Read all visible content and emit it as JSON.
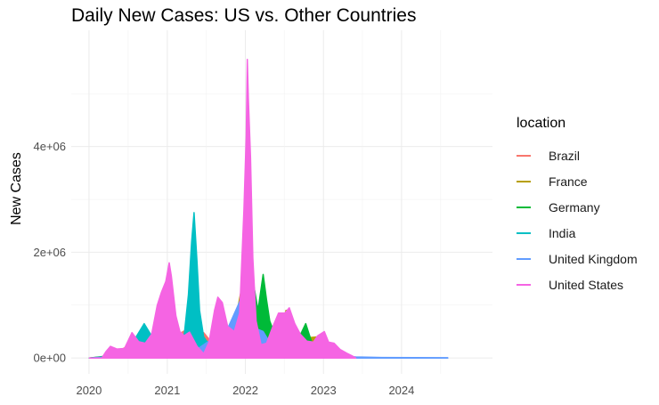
{
  "chart_data": {
    "type": "area",
    "title": "Daily New Cases: US vs. Other Countries",
    "xlabel": "",
    "ylabel": "New Cases",
    "xlim": [
      "2019-10-10",
      "2025-03-01"
    ],
    "ylim": [
      -300000,
      6200000
    ],
    "x_ticks": [
      "2020",
      "2021",
      "2022",
      "2023",
      "2024"
    ],
    "y_ticks": [
      {
        "value": 0,
        "label": "0e+00"
      },
      {
        "value": 2000000,
        "label": "2e+06"
      },
      {
        "value": 4000000,
        "label": "4e+06"
      }
    ],
    "grid": true,
    "legend": {
      "title": "location",
      "placement": "right"
    },
    "series": [
      {
        "name": "Brazil",
        "color": "#F8766D",
        "points": [
          [
            "2020-01-03",
            0
          ],
          [
            "2020-03-15",
            5000
          ],
          [
            "2020-05-15",
            120000
          ],
          [
            "2020-07-30",
            300000
          ],
          [
            "2020-10-15",
            160000
          ],
          [
            "2021-01-10",
            350000
          ],
          [
            "2021-03-25",
            520000
          ],
          [
            "2021-06-20",
            480000
          ],
          [
            "2021-08-15",
            200000
          ],
          [
            "2021-11-10",
            70000
          ],
          [
            "2022-01-31",
            1150000
          ],
          [
            "2022-03-15",
            250000
          ],
          [
            "2022-06-25",
            390000
          ],
          [
            "2022-08-15",
            100000
          ],
          [
            "2022-11-30",
            250000
          ],
          [
            "2023-02-01",
            60000
          ],
          [
            "2023-05-01",
            30000
          ],
          [
            "2023-06-15",
            0
          ]
        ]
      },
      {
        "name": "France",
        "color": "#B79F00",
        "points": [
          [
            "2020-01-03",
            0
          ],
          [
            "2020-03-30",
            30000
          ],
          [
            "2020-06-01",
            5000
          ],
          [
            "2020-11-01",
            350000
          ],
          [
            "2021-01-15",
            150000
          ],
          [
            "2021-04-10",
            250000
          ],
          [
            "2021-06-15",
            20000
          ],
          [
            "2021-08-10",
            170000
          ],
          [
            "2021-10-15",
            40000
          ],
          [
            "2022-01-20",
            2100000
          ],
          [
            "2022-02-25",
            400000
          ],
          [
            "2022-04-05",
            950000
          ],
          [
            "2022-05-20",
            200000
          ],
          [
            "2022-07-10",
            900000
          ],
          [
            "2022-08-30",
            150000
          ],
          [
            "2022-10-10",
            380000
          ],
          [
            "2022-12-10",
            400000
          ],
          [
            "2023-02-10",
            50000
          ],
          [
            "2023-04-30",
            20000
          ],
          [
            "2023-06-15",
            0
          ]
        ]
      },
      {
        "name": "Germany",
        "color": "#00BA38",
        "points": [
          [
            "2020-01-03",
            0
          ],
          [
            "2020-04-01",
            40000
          ],
          [
            "2020-06-01",
            3000
          ],
          [
            "2020-12-20",
            180000
          ],
          [
            "2021-02-15",
            60000
          ],
          [
            "2021-04-25",
            150000
          ],
          [
            "2021-07-01",
            5000
          ],
          [
            "2021-11-25",
            400000
          ],
          [
            "2021-12-31",
            150000
          ],
          [
            "2022-02-10",
            1350000
          ],
          [
            "2022-03-01",
            900000
          ],
          [
            "2022-03-25",
            1580000
          ],
          [
            "2022-04-10",
            1100000
          ],
          [
            "2022-04-25",
            700000
          ],
          [
            "2022-06-01",
            300000
          ],
          [
            "2022-07-15",
            900000
          ],
          [
            "2022-08-30",
            300000
          ],
          [
            "2022-10-10",
            650000
          ],
          [
            "2022-11-15",
            200000
          ],
          [
            "2022-12-25",
            150000
          ],
          [
            "2023-03-01",
            60000
          ],
          [
            "2023-06-15",
            0
          ]
        ]
      },
      {
        "name": "India",
        "color": "#00BFC4",
        "points": [
          [
            "2020-01-03",
            0
          ],
          [
            "2020-04-01",
            3000
          ],
          [
            "2020-06-15",
            70000
          ],
          [
            "2020-08-01",
            350000
          ],
          [
            "2020-09-15",
            650000
          ],
          [
            "2020-10-15",
            450000
          ],
          [
            "2020-12-01",
            250000
          ],
          [
            "2021-02-10",
            90000
          ],
          [
            "2021-03-15",
            200000
          ],
          [
            "2021-04-10",
            1200000
          ],
          [
            "2021-04-25",
            2200000
          ],
          [
            "2021-05-06",
            2750000
          ],
          [
            "2021-05-20",
            1800000
          ],
          [
            "2021-06-01",
            900000
          ],
          [
            "2021-06-20",
            400000
          ],
          [
            "2021-07-15",
            250000
          ],
          [
            "2021-10-15",
            120000
          ],
          [
            "2021-12-20",
            50000
          ],
          [
            "2022-01-22",
            2300000
          ],
          [
            "2022-02-10",
            800000
          ],
          [
            "2022-03-15",
            50000
          ],
          [
            "2022-06-15",
            80000
          ],
          [
            "2022-08-01",
            120000
          ],
          [
            "2022-10-15",
            20000
          ],
          [
            "2023-04-15",
            30000
          ],
          [
            "2023-06-15",
            0
          ]
        ]
      },
      {
        "name": "United Kingdom",
        "color": "#619CFF",
        "points": [
          [
            "2020-01-03",
            0
          ],
          [
            "2020-04-15",
            30000
          ],
          [
            "2020-11-05",
            150000
          ],
          [
            "2021-01-05",
            420000
          ],
          [
            "2021-03-01",
            50000
          ],
          [
            "2021-05-15",
            150000
          ],
          [
            "2021-07-15",
            320000
          ],
          [
            "2021-09-01",
            200000
          ],
          [
            "2021-12-31",
            1300000
          ],
          [
            "2022-01-25",
            600000
          ],
          [
            "2022-03-25",
            500000
          ],
          [
            "2022-05-01",
            250000
          ],
          [
            "2022-07-01",
            200000
          ],
          [
            "2022-10-10",
            100000
          ],
          [
            "2023-01-15",
            50000
          ],
          [
            "2023-06-01",
            20000
          ],
          [
            "2023-10-01",
            10000
          ],
          [
            "2024-03-01",
            8000
          ],
          [
            "2024-08-04",
            5000
          ]
        ]
      },
      {
        "name": "United States",
        "color": "#F564E3",
        "points": [
          [
            "2020-01-03",
            0
          ],
          [
            "2020-03-01",
            0
          ],
          [
            "2020-03-20",
            120000
          ],
          [
            "2020-04-10",
            220000
          ],
          [
            "2020-05-10",
            170000
          ],
          [
            "2020-06-15",
            180000
          ],
          [
            "2020-07-20",
            480000
          ],
          [
            "2020-08-20",
            310000
          ],
          [
            "2020-09-20",
            280000
          ],
          [
            "2020-10-20",
            450000
          ],
          [
            "2020-11-15",
            1000000
          ],
          [
            "2020-12-05",
            1250000
          ],
          [
            "2020-12-25",
            1450000
          ],
          [
            "2021-01-10",
            1800000
          ],
          [
            "2021-01-20",
            1550000
          ],
          [
            "2021-02-10",
            800000
          ],
          [
            "2021-03-01",
            500000
          ],
          [
            "2021-03-20",
            420000
          ],
          [
            "2021-04-15",
            490000
          ],
          [
            "2021-05-20",
            220000
          ],
          [
            "2021-06-20",
            80000
          ],
          [
            "2021-07-15",
            300000
          ],
          [
            "2021-08-10",
            900000
          ],
          [
            "2021-08-25",
            1150000
          ],
          [
            "2021-09-15",
            1050000
          ],
          [
            "2021-10-10",
            600000
          ],
          [
            "2021-11-10",
            500000
          ],
          [
            "2021-12-05",
            850000
          ],
          [
            "2021-12-25",
            2800000
          ],
          [
            "2022-01-05",
            4200000
          ],
          [
            "2022-01-10",
            5650000
          ],
          [
            "2022-01-15",
            4900000
          ],
          [
            "2022-01-25",
            3800000
          ],
          [
            "2022-02-05",
            1900000
          ],
          [
            "2022-02-20",
            700000
          ],
          [
            "2022-03-15",
            250000
          ],
          [
            "2022-04-10",
            280000
          ],
          [
            "2022-05-10",
            600000
          ],
          [
            "2022-06-05",
            850000
          ],
          [
            "2022-07-05",
            850000
          ],
          [
            "2022-07-25",
            950000
          ],
          [
            "2022-08-20",
            650000
          ],
          [
            "2022-09-15",
            450000
          ],
          [
            "2022-10-15",
            320000
          ],
          [
            "2022-11-15",
            300000
          ],
          [
            "2022-12-05",
            420000
          ],
          [
            "2023-01-05",
            500000
          ],
          [
            "2023-01-25",
            300000
          ],
          [
            "2023-02-20",
            280000
          ],
          [
            "2023-03-20",
            160000
          ],
          [
            "2023-04-20",
            90000
          ],
          [
            "2023-05-15",
            40000
          ],
          [
            "2023-06-01",
            0
          ]
        ]
      }
    ]
  }
}
